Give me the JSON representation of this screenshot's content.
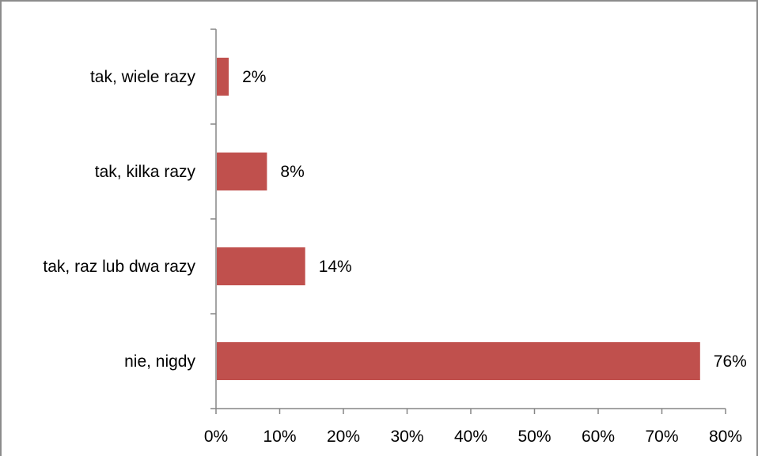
{
  "chart_data": {
    "type": "bar",
    "orientation": "horizontal",
    "categories": [
      "tak, wiele razy",
      "tak, kilka razy",
      "tak, raz lub dwa razy",
      "nie, nigdy"
    ],
    "values": [
      2,
      8,
      14,
      76
    ],
    "data_labels": [
      "2%",
      "8%",
      "14%",
      "76%"
    ],
    "xlim": [
      0,
      80
    ],
    "x_ticks": [
      "0%",
      "10%",
      "20%",
      "30%",
      "40%",
      "50%",
      "60%",
      "70%",
      "80%"
    ],
    "bar_color": "#c0504d",
    "grid": false,
    "legend": "none"
  }
}
